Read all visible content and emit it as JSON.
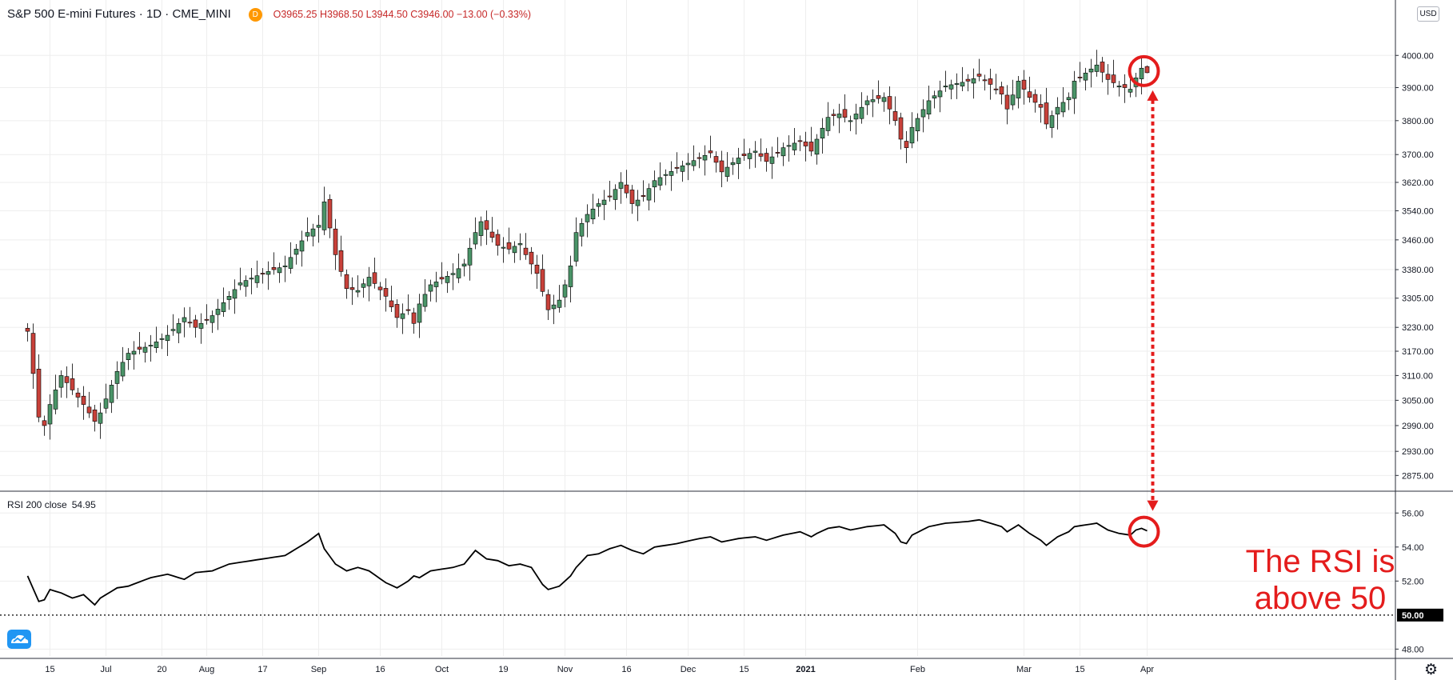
{
  "header": {
    "symbol": "S&P 500 E-mini Futures · 1D · CME_MINI",
    "interval_badge": "D",
    "ohlc": "O3965.25 H3968.50 L3944.50 C3946.00 −13.00 (−0.33%)"
  },
  "currency_badge": "USD",
  "rsi_label": "RSI 200 close",
  "rsi_value": "54.95",
  "annotation": {
    "line1": "The RSI is",
    "line2": "above 50",
    "color": "#e41c1c"
  },
  "colors": {
    "up": "#4a9468",
    "down": "#c8413a",
    "grid": "#eeeeee",
    "text": "#131722"
  },
  "icons": {
    "logo": "tradingview-cloud-icon",
    "settings": "gear-icon"
  },
  "chart_data": [
    {
      "type": "candlestick",
      "title": "S&P 500 E-mini Futures · 1D · CME_MINI",
      "y_scale": "log",
      "ylim": [
        2845,
        4100
      ],
      "y_ticks": [
        4000,
        3900,
        3800,
        3700,
        3620,
        3540,
        3460,
        3380,
        3305,
        3230,
        3170,
        3110,
        3050,
        2990,
        2930,
        2875
      ],
      "x_ticks": [
        {
          "label": "15",
          "index": 4
        },
        {
          "label": "Jul",
          "index": 14
        },
        {
          "label": "20",
          "index": 24
        },
        {
          "label": "Aug",
          "index": 32
        },
        {
          "label": "17",
          "index": 42
        },
        {
          "label": "Sep",
          "index": 52
        },
        {
          "label": "16",
          "index": 63
        },
        {
          "label": "Oct",
          "index": 74
        },
        {
          "label": "19",
          "index": 85
        },
        {
          "label": "Nov",
          "index": 96
        },
        {
          "label": "16",
          "index": 107
        },
        {
          "label": "Dec",
          "index": 118
        },
        {
          "label": "15",
          "index": 128
        },
        {
          "label": "2021",
          "index": 139
        },
        {
          "label": "Feb",
          "index": 159
        },
        {
          "label": "Mar",
          "index": 178
        },
        {
          "label": "15",
          "index": 188
        },
        {
          "label": "Apr",
          "index": 200
        }
      ],
      "grid": true,
      "anchors": [
        [
          0,
          3220
        ],
        [
          2,
          3010
        ],
        [
          3,
          2990
        ],
        [
          4,
          3040
        ],
        [
          6,
          3110
        ],
        [
          10,
          3040
        ],
        [
          12,
          3000
        ],
        [
          13,
          3020
        ],
        [
          16,
          3120
        ],
        [
          18,
          3165
        ],
        [
          22,
          3185
        ],
        [
          25,
          3210
        ],
        [
          28,
          3255
        ],
        [
          30,
          3230
        ],
        [
          33,
          3260
        ],
        [
          36,
          3310
        ],
        [
          38,
          3345
        ],
        [
          42,
          3370
        ],
        [
          46,
          3390
        ],
        [
          48,
          3435
        ],
        [
          50,
          3480
        ],
        [
          52,
          3500
        ],
        [
          53,
          3565
        ],
        [
          55,
          3420
        ],
        [
          57,
          3330
        ],
        [
          59,
          3325
        ],
        [
          61,
          3360
        ],
        [
          64,
          3310
        ],
        [
          66,
          3255
        ],
        [
          68,
          3275
        ],
        [
          69,
          3240
        ],
        [
          70,
          3290
        ],
        [
          72,
          3340
        ],
        [
          76,
          3370
        ],
        [
          78,
          3395
        ],
        [
          80,
          3480
        ],
        [
          81,
          3510
        ],
        [
          84,
          3445
        ],
        [
          86,
          3435
        ],
        [
          88,
          3450
        ],
        [
          89,
          3420
        ],
        [
          91,
          3370
        ],
        [
          93,
          3275
        ],
        [
          95,
          3300
        ],
        [
          96,
          3340
        ],
        [
          97,
          3390
        ],
        [
          98,
          3480
        ],
        [
          100,
          3530
        ],
        [
          102,
          3560
        ],
        [
          104,
          3580
        ],
        [
          106,
          3620
        ],
        [
          108,
          3560
        ],
        [
          110,
          3580
        ],
        [
          112,
          3625
        ],
        [
          116,
          3660
        ],
        [
          120,
          3690
        ],
        [
          122,
          3705
        ],
        [
          124,
          3650
        ],
        [
          127,
          3690
        ],
        [
          130,
          3710
        ],
        [
          132,
          3680
        ],
        [
          135,
          3720
        ],
        [
          138,
          3740
        ],
        [
          140,
          3710
        ],
        [
          141,
          3745
        ],
        [
          143,
          3810
        ],
        [
          145,
          3820
        ],
        [
          147,
          3800
        ],
        [
          150,
          3860
        ],
        [
          153,
          3870
        ],
        [
          155,
          3800
        ],
        [
          156,
          3745
        ],
        [
          157,
          3720
        ],
        [
          158,
          3780
        ],
        [
          161,
          3860
        ],
        [
          164,
          3905
        ],
        [
          168,
          3920
        ],
        [
          170,
          3935
        ],
        [
          172,
          3910
        ],
        [
          174,
          3880
        ],
        [
          175,
          3835
        ],
        [
          177,
          3920
        ],
        [
          179,
          3870
        ],
        [
          181,
          3840
        ],
        [
          182,
          3790
        ],
        [
          184,
          3840
        ],
        [
          186,
          3870
        ],
        [
          187,
          3920
        ],
        [
          189,
          3945
        ],
        [
          191,
          3970
        ],
        [
          193,
          3925
        ],
        [
          195,
          3905
        ],
        [
          197,
          3895
        ],
        [
          198,
          3930
        ],
        [
          199,
          3960
        ],
        [
          200,
          3946
        ]
      ],
      "ohlc_last": {
        "open": 3965.25,
        "high": 3968.5,
        "low": 3944.5,
        "close": 3946.0
      }
    },
    {
      "type": "line",
      "title": "RSI 200 close",
      "ylim": [
        47.5,
        57.0
      ],
      "y_ticks": [
        56.0,
        54.0,
        52.0,
        48.0
      ],
      "reference_line": 50.0,
      "last_value": 54.95,
      "anchors": [
        [
          0,
          52.3
        ],
        [
          2,
          50.8
        ],
        [
          3,
          50.9
        ],
        [
          4,
          51.5
        ],
        [
          6,
          51.3
        ],
        [
          8,
          51.0
        ],
        [
          10,
          51.2
        ],
        [
          12,
          50.6
        ],
        [
          13,
          51.0
        ],
        [
          16,
          51.6
        ],
        [
          18,
          51.7
        ],
        [
          22,
          52.2
        ],
        [
          25,
          52.4
        ],
        [
          28,
          52.1
        ],
        [
          30,
          52.5
        ],
        [
          33,
          52.6
        ],
        [
          36,
          53.0
        ],
        [
          38,
          53.1
        ],
        [
          42,
          53.3
        ],
        [
          46,
          53.5
        ],
        [
          48,
          53.9
        ],
        [
          50,
          54.3
        ],
        [
          52,
          54.8
        ],
        [
          53,
          53.9
        ],
        [
          55,
          53.0
        ],
        [
          57,
          52.6
        ],
        [
          59,
          52.8
        ],
        [
          61,
          52.6
        ],
        [
          64,
          51.9
        ],
        [
          66,
          51.6
        ],
        [
          68,
          52.0
        ],
        [
          69,
          52.3
        ],
        [
          70,
          52.2
        ],
        [
          72,
          52.6
        ],
        [
          76,
          52.8
        ],
        [
          78,
          53.0
        ],
        [
          80,
          53.8
        ],
        [
          82,
          53.3
        ],
        [
          84,
          53.2
        ],
        [
          86,
          52.9
        ],
        [
          88,
          53.0
        ],
        [
          90,
          52.8
        ],
        [
          92,
          51.8
        ],
        [
          93,
          51.5
        ],
        [
          95,
          51.7
        ],
        [
          97,
          52.3
        ],
        [
          98,
          52.8
        ],
        [
          100,
          53.5
        ],
        [
          102,
          53.6
        ],
        [
          104,
          53.9
        ],
        [
          106,
          54.1
        ],
        [
          108,
          53.8
        ],
        [
          110,
          53.6
        ],
        [
          112,
          54.0
        ],
        [
          116,
          54.2
        ],
        [
          120,
          54.5
        ],
        [
          122,
          54.6
        ],
        [
          124,
          54.3
        ],
        [
          127,
          54.5
        ],
        [
          130,
          54.6
        ],
        [
          132,
          54.4
        ],
        [
          135,
          54.7
        ],
        [
          138,
          54.9
        ],
        [
          140,
          54.6
        ],
        [
          141,
          54.8
        ],
        [
          143,
          55.1
        ],
        [
          145,
          55.2
        ],
        [
          147,
          55.0
        ],
        [
          150,
          55.2
        ],
        [
          153,
          55.3
        ],
        [
          155,
          54.8
        ],
        [
          156,
          54.3
        ],
        [
          157,
          54.2
        ],
        [
          158,
          54.7
        ],
        [
          161,
          55.2
        ],
        [
          164,
          55.4
        ],
        [
          168,
          55.5
        ],
        [
          170,
          55.6
        ],
        [
          172,
          55.4
        ],
        [
          174,
          55.2
        ],
        [
          175,
          54.9
        ],
        [
          177,
          55.3
        ],
        [
          179,
          54.8
        ],
        [
          181,
          54.4
        ],
        [
          182,
          54.1
        ],
        [
          184,
          54.6
        ],
        [
          186,
          54.9
        ],
        [
          187,
          55.2
        ],
        [
          189,
          55.3
        ],
        [
          191,
          55.4
        ],
        [
          193,
          55.0
        ],
        [
          195,
          54.8
        ],
        [
          197,
          54.7
        ],
        [
          198,
          55.0
        ],
        [
          199,
          55.1
        ],
        [
          200,
          54.95
        ]
      ]
    }
  ]
}
